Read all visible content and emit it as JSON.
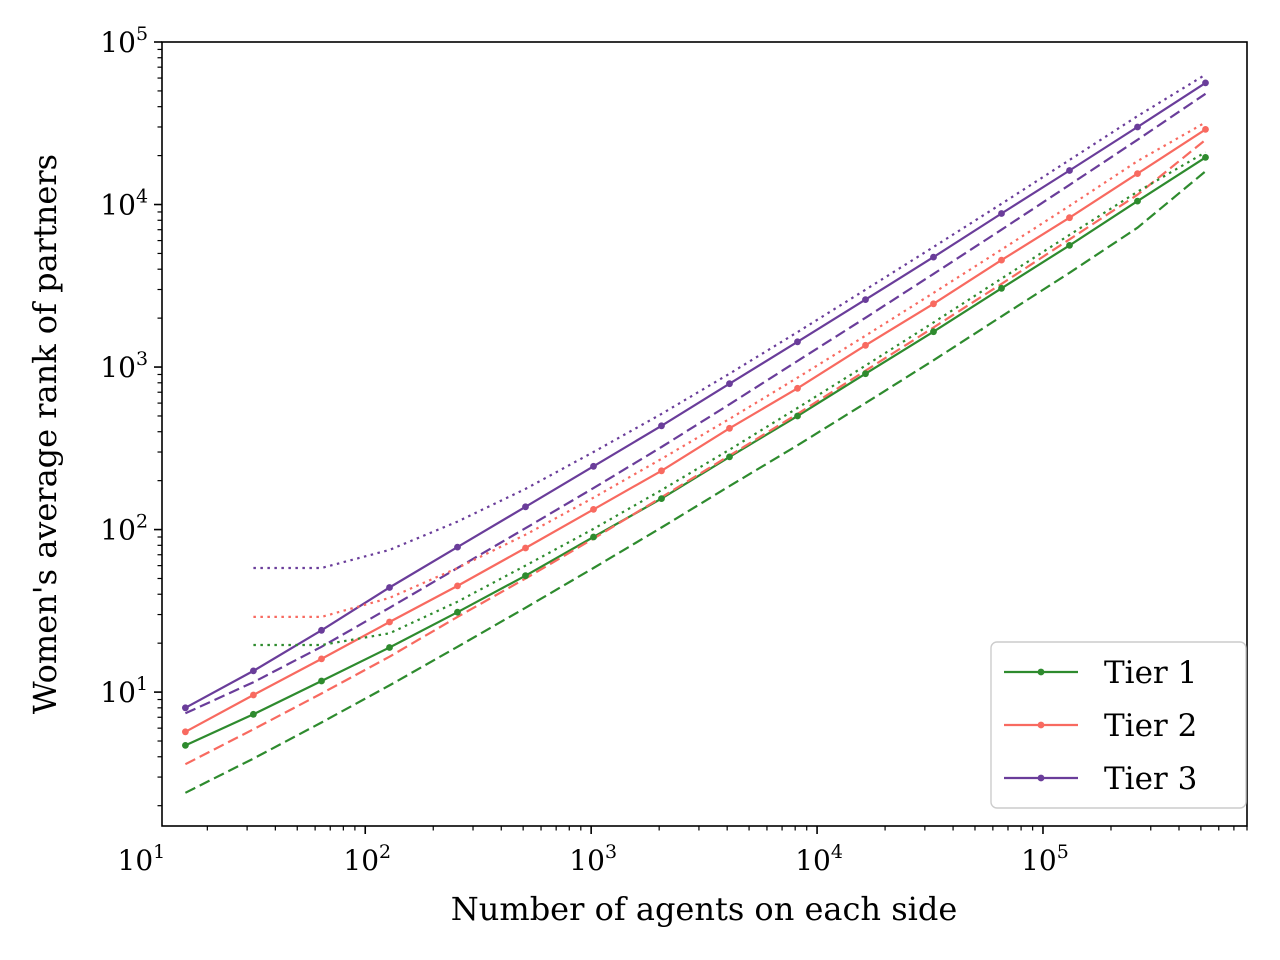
{
  "chart_data": {
    "type": "line",
    "title": "",
    "xlabel": "Number of agents on each side",
    "ylabel": "Women's average rank of partners",
    "xscale": "log",
    "yscale": "log",
    "xlim": [
      12.6,
      800000
    ],
    "ylim": [
      1.5,
      100000
    ],
    "grid": false,
    "legend_position": "lower-right",
    "x_tick_labels": [
      {
        "value": 10,
        "base": "10",
        "exp": "1"
      },
      {
        "value": 100,
        "base": "10",
        "exp": "2"
      },
      {
        "value": 1000,
        "base": "10",
        "exp": "3"
      },
      {
        "value": 10000,
        "base": "10",
        "exp": "4"
      },
      {
        "value": 100000,
        "base": "10",
        "exp": "5"
      }
    ],
    "y_tick_labels": [
      {
        "value": 10,
        "base": "10",
        "exp": "1"
      },
      {
        "value": 100,
        "base": "10",
        "exp": "2"
      },
      {
        "value": 1000,
        "base": "10",
        "exp": "3"
      },
      {
        "value": 10000,
        "base": "10",
        "exp": "4"
      },
      {
        "value": 100000,
        "base": "10",
        "exp": "5"
      }
    ],
    "x": [
      16,
      32,
      64,
      128,
      256,
      512,
      1024,
      2048,
      4096,
      8192,
      16384,
      32768,
      65536,
      131072,
      262144,
      524288
    ],
    "series": [
      {
        "name": "Tier 1",
        "color": "#2e8b2e",
        "style": "solid",
        "marker": "dot",
        "values": [
          4.7,
          7.3,
          11.7,
          18.8,
          31,
          52,
          90,
          155,
          280,
          500,
          910,
          1650,
          3050,
          5600,
          10500,
          19500
        ]
      },
      {
        "name": "Tier 2",
        "color": "#f86a60",
        "style": "solid",
        "marker": "dot",
        "values": [
          5.7,
          9.6,
          16,
          27,
          45,
          77,
          133,
          230,
          420,
          740,
          1360,
          2450,
          4550,
          8300,
          15500,
          29000
        ]
      },
      {
        "name": "Tier 3",
        "color": "#6a3d9a",
        "style": "solid",
        "marker": "dot",
        "values": [
          8,
          13.5,
          24,
          44,
          78,
          138,
          245,
          435,
          790,
          1430,
          2600,
          4750,
          8800,
          16200,
          30000,
          56000
        ]
      },
      {
        "color": "#2e8b2e",
        "style": "dashed",
        "values": [
          2.4,
          3.9,
          6.5,
          11,
          19,
          33,
          58,
          103,
          185,
          330,
          600,
          1100,
          2050,
          3800,
          7200,
          16000
        ]
      },
      {
        "color": "#f86a60",
        "style": "dashed",
        "values": [
          3.6,
          5.9,
          9.8,
          16.5,
          29,
          50,
          88,
          158,
          285,
          515,
          950,
          1750,
          3250,
          6100,
          11500,
          25000
        ]
      },
      {
        "color": "#6a3d9a",
        "style": "dashed",
        "values": [
          7.4,
          11.5,
          19,
          33,
          58,
          102,
          180,
          322,
          590,
          1090,
          2010,
          3740,
          7000,
          13200,
          25000,
          48000
        ]
      },
      {
        "color": "#2e8b2e",
        "style": "dotted",
        "values": [
          null,
          19.5,
          19.5,
          23,
          36,
          60,
          101,
          175,
          310,
          560,
          1020,
          1880,
          3500,
          6500,
          12000,
          21000
        ]
      },
      {
        "color": "#f86a60",
        "style": "dotted",
        "values": [
          null,
          29,
          29,
          38,
          58,
          93,
          157,
          272,
          480,
          860,
          1560,
          2860,
          5280,
          9800,
          18500,
          32000
        ]
      },
      {
        "color": "#6a3d9a",
        "style": "dotted",
        "values": [
          null,
          58,
          58,
          75,
          112,
          178,
          300,
          515,
          910,
          1640,
          2990,
          5480,
          10100,
          18800,
          35000,
          63000
        ]
      }
    ]
  }
}
